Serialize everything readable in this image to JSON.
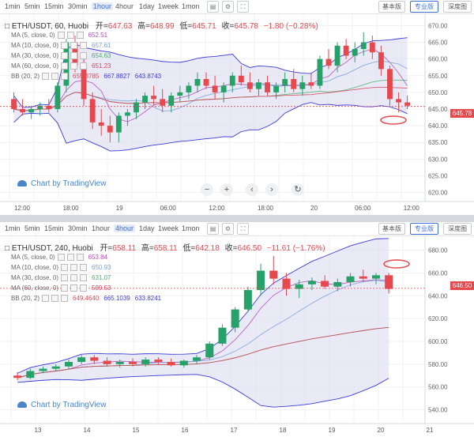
{
  "toolbar": {
    "timeframes": [
      "1min",
      "5min",
      "15min",
      "30min",
      "1hour",
      "4hour",
      "1day",
      "1week",
      "1mon"
    ],
    "views": [
      "基本版",
      "专业版",
      "深度图"
    ],
    "active_view": "专业版"
  },
  "panel1": {
    "active_timeframe": "1hour",
    "symbol": "ETH/USDT, 60, Huobi",
    "ohlc": {
      "open_label": "开=",
      "open": "647.63",
      "high_label": "高=",
      "high": "648.99",
      "low_label": "低=",
      "low": "645.71",
      "close_label": "收=",
      "close": "645.78",
      "change": "−1.80 (−0.28%)"
    },
    "indicators": [
      {
        "label": "MA (5, close, 0)",
        "value": "652.51",
        "color": "#b04bb5"
      },
      {
        "label": "MA (10, close, 0)",
        "value": "657.61",
        "color": "#7aa0d8"
      },
      {
        "label": "MA (30, close, 0)",
        "value": "654.63",
        "color": "#4caf6a"
      },
      {
        "label": "MA (60, close, 0)",
        "value": "651.23",
        "color": "#d9415a"
      },
      {
        "label": "BB (20, 2)",
        "value": "655.8785",
        "value2": "667.8827",
        "value3": "643.8743",
        "color": "#e5484d",
        "color2": "#3b3bd6",
        "color3": "#3b3bd6"
      }
    ],
    "last_price": "645.78",
    "watermark": "Chart by TradingView",
    "y_ticks": [
      "670.00",
      "665.00",
      "660.00",
      "655.00",
      "650.00",
      "645.00",
      "640.00",
      "635.00",
      "630.00",
      "625.00",
      "620.00"
    ],
    "x_ticks": [
      "12:00",
      "18:00",
      "19",
      "06:00",
      "12:00",
      "18:00",
      "20",
      "06:00",
      "12:00"
    ]
  },
  "panel2": {
    "active_timeframe": "4hour",
    "symbol": "ETH/USDT, 240, Huobi",
    "ohlc": {
      "open_label": "开=",
      "open": "658.11",
      "high_label": "高=",
      "high": "658.11",
      "low_label": "低=",
      "low": "642.18",
      "close_label": "收=",
      "close": "646.50",
      "change": "−11.61 (−1.76%)"
    },
    "indicators": [
      {
        "label": "MA (5, close, 0)",
        "value": "653.84",
        "color": "#b04bb5"
      },
      {
        "label": "MA (10, close, 0)",
        "value": "650.93",
        "color": "#7aa0d8"
      },
      {
        "label": "MA (30, close, 0)",
        "value": "631.07",
        "color": "#4caf6a"
      },
      {
        "label": "MA (60, close, 0)",
        "value": "599.53",
        "color": "#d9415a"
      },
      {
        "label": "BB (20, 2)",
        "value": "649.4640",
        "value2": "665.1039",
        "value3": "633.8241",
        "color": "#e5484d",
        "color2": "#3b3bd6",
        "color3": "#3b3bd6"
      }
    ],
    "last_price": "646.50",
    "watermark": "Chart by TradingView",
    "y_ticks": [
      "680.00",
      "660.00",
      "640.00",
      "620.00",
      "600.00",
      "580.00",
      "560.00",
      "540.00"
    ],
    "x_ticks": [
      "13",
      "14",
      "15",
      "16",
      "17",
      "18",
      "19",
      "20",
      "21"
    ]
  },
  "colors": {
    "up": "#26a269",
    "down": "#e5484d",
    "band_fill": "#d8d8f0",
    "band_line": "#3b3bd6"
  },
  "chart_data": [
    {
      "type": "candlestick",
      "title": "ETH/USDT, 60, Huobi",
      "ylim": [
        618,
        672
      ],
      "x_range": [
        "12:00 day 18",
        "12:00 day 20"
      ],
      "candles": [
        [
          648,
          650,
          644,
          645
        ],
        [
          645,
          648,
          643,
          644
        ],
        [
          644,
          646,
          642,
          645
        ],
        [
          645,
          647,
          643,
          646
        ],
        [
          646,
          648,
          644,
          645
        ],
        [
          645,
          653,
          644,
          652
        ],
        [
          652,
          666,
          650,
          665
        ],
        [
          665,
          667,
          656,
          658
        ],
        [
          658,
          660,
          646,
          648
        ],
        [
          648,
          650,
          639,
          641
        ],
        [
          641,
          645,
          637,
          640
        ],
        [
          640,
          643,
          635,
          638
        ],
        [
          638,
          644,
          635,
          643
        ],
        [
          643,
          645,
          640,
          644
        ],
        [
          644,
          648,
          642,
          647
        ],
        [
          647,
          650,
          645,
          649
        ],
        [
          649,
          652,
          646,
          648
        ],
        [
          648,
          651,
          644,
          646
        ],
        [
          646,
          650,
          644,
          649
        ],
        [
          649,
          652,
          647,
          650
        ],
        [
          650,
          653,
          648,
          652
        ],
        [
          652,
          656,
          650,
          654
        ],
        [
          654,
          656,
          651,
          652
        ],
        [
          652,
          655,
          648,
          650
        ],
        [
          650,
          653,
          647,
          652
        ],
        [
          652,
          656,
          650,
          655
        ],
        [
          655,
          658,
          652,
          653
        ],
        [
          653,
          656,
          650,
          651
        ],
        [
          651,
          654,
          649,
          653
        ],
        [
          653,
          655,
          649,
          650
        ],
        [
          650,
          653,
          648,
          652
        ],
        [
          652,
          656,
          650,
          654
        ],
        [
          654,
          657,
          650,
          651
        ],
        [
          651,
          655,
          649,
          653
        ],
        [
          653,
          656,
          651,
          652
        ],
        [
          652,
          661,
          651,
          660
        ],
        [
          660,
          663,
          657,
          658
        ],
        [
          658,
          665,
          656,
          664
        ],
        [
          664,
          666,
          660,
          661
        ],
        [
          661,
          665,
          659,
          663
        ],
        [
          663,
          668,
          661,
          665
        ],
        [
          665,
          667,
          660,
          662
        ],
        [
          662,
          664,
          655,
          657
        ],
        [
          657,
          658,
          646,
          648
        ],
        [
          648,
          650,
          644,
          647
        ],
        [
          647,
          649,
          645,
          646
        ]
      ]
    },
    {
      "type": "candlestick",
      "title": "ETH/USDT, 240, Huobi",
      "ylim": [
        530,
        688
      ],
      "x_range": [
        "day 12",
        "day 21"
      ],
      "candles": [
        [
          570,
          573,
          566,
          568
        ],
        [
          568,
          576,
          567,
          574
        ],
        [
          574,
          578,
          572,
          576
        ],
        [
          576,
          580,
          574,
          578
        ],
        [
          578,
          584,
          576,
          582
        ],
        [
          582,
          588,
          580,
          586
        ],
        [
          586,
          588,
          580,
          583
        ],
        [
          583,
          586,
          578,
          580
        ],
        [
          580,
          584,
          577,
          582
        ],
        [
          582,
          585,
          578,
          580
        ],
        [
          580,
          586,
          578,
          584
        ],
        [
          584,
          586,
          580,
          582
        ],
        [
          582,
          585,
          578,
          579
        ],
        [
          579,
          584,
          577,
          583
        ],
        [
          583,
          588,
          580,
          586
        ],
        [
          586,
          600,
          584,
          598
        ],
        [
          598,
          615,
          596,
          612
        ],
        [
          612,
          630,
          608,
          628
        ],
        [
          628,
          648,
          626,
          645
        ],
        [
          645,
          668,
          640,
          662
        ],
        [
          662,
          675,
          650,
          655
        ],
        [
          655,
          660,
          640,
          646
        ],
        [
          646,
          654,
          638,
          650
        ],
        [
          650,
          656,
          645,
          653
        ],
        [
          653,
          658,
          646,
          648
        ],
        [
          648,
          655,
          644,
          652
        ],
        [
          652,
          660,
          648,
          657
        ],
        [
          657,
          663,
          652,
          655
        ],
        [
          655,
          660,
          650,
          658
        ],
        [
          658,
          660,
          642,
          646
        ]
      ]
    }
  ]
}
